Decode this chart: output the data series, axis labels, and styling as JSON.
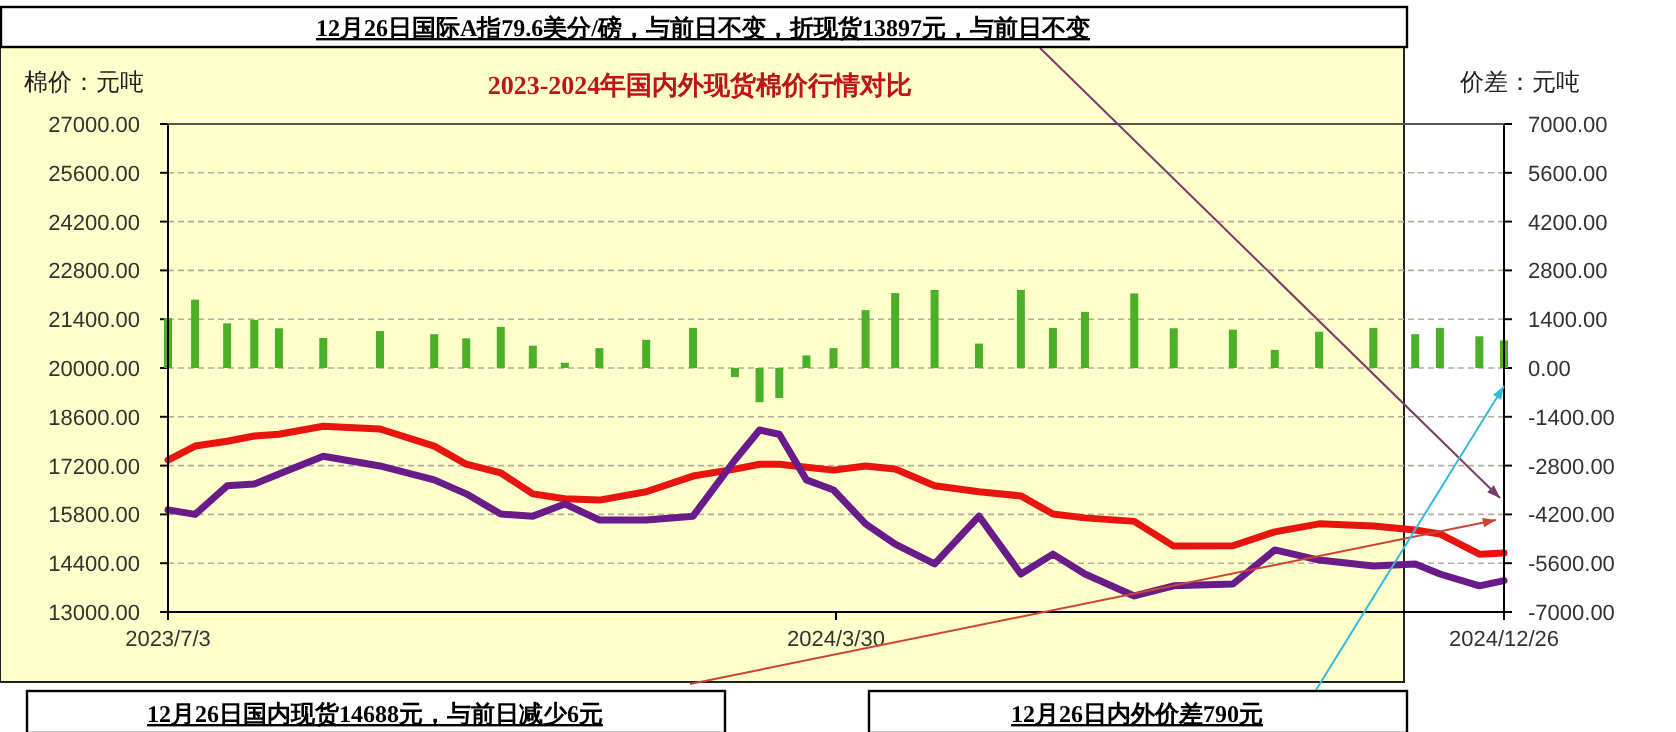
{
  "chart_data": {
    "type": "line",
    "title": "2023-2024年国内外现货棉价行情对比",
    "ylabel": "棉价：元吨",
    "y2label": "价差：元吨",
    "annotations": [
      "12月26日国际A指79.6美分/磅，与前日不变，折现货13897元，与前日不变",
      "12月26日国内现货14688元，与前日减少6元",
      "12月26日内外价差790元"
    ],
    "x": [
      "2023-07-03",
      "2023-07-14",
      "2023-07-27",
      "2023-08-07",
      "2023-08-17",
      "2023-09-04",
      "2023-09-27",
      "2023-10-19",
      "2023-11-01",
      "2023-11-15",
      "2023-11-28",
      "2023-12-11",
      "2023-12-25",
      "2024-01-13",
      "2024-02-01",
      "2024-02-18",
      "2024-02-28",
      "2024-03-07",
      "2024-03-18",
      "2024-03-29",
      "2024-04-11",
      "2024-04-23",
      "2024-05-09",
      "2024-05-27",
      "2024-06-13",
      "2024-06-26",
      "2024-07-09",
      "2024-07-29",
      "2024-08-14",
      "2024-09-07",
      "2024-09-24",
      "2024-10-12",
      "2024-11-03",
      "2024-11-20",
      "2024-11-30",
      "2024-12-16",
      "2024-12-26"
    ],
    "series": [
      {
        "type": "bar",
        "axis": "y2",
        "color": "#4caf28",
        "values": [
          1430,
          1960,
          1280,
          1380,
          1140,
          860,
          1060,
          970,
          850,
          1180,
          640,
          150,
          570,
          810,
          1150,
          -260,
          -980,
          -860,
          360,
          570,
          1660,
          2150,
          2240,
          700,
          2240,
          1150,
          1610,
          2140,
          1140,
          1100,
          520,
          1040,
          1150,
          970,
          1150,
          910,
          790
        ]
      },
      {
        "color": "#e8140e",
        "values": [
          17360,
          17760,
          17900,
          18050,
          18100,
          18330,
          18250,
          17760,
          17240,
          16990,
          16390,
          16250,
          16210,
          16450,
          16900,
          17100,
          17240,
          17240,
          17150,
          17070,
          17190,
          17100,
          16620,
          16450,
          16330,
          15810,
          15700,
          15600,
          14890,
          14900,
          15300,
          15530,
          15470,
          15350,
          15240,
          14660,
          14690
        ]
      },
      {
        "color": "#6a1b8a",
        "values": [
          15930,
          15800,
          16620,
          16670,
          16960,
          17470,
          17190,
          16790,
          16390,
          15810,
          15750,
          16100,
          15640,
          15640,
          15750,
          17360,
          18220,
          18100,
          16790,
          16500,
          15530,
          14950,
          14380,
          15750,
          14090,
          14660,
          14090,
          13460,
          13750,
          13800,
          14780,
          14490,
          14320,
          14380,
          14090,
          13750,
          13900
        ]
      }
    ],
    "xlim": [
      "2023-07-03",
      "2024-12-26"
    ],
    "xticks": [
      {
        "value": "2023-07-03",
        "label": "2023/7/3"
      },
      {
        "value": "2024-03-30",
        "label": "2024/3/30"
      },
      {
        "value": "2024-12-26",
        "label": "2024/12/26"
      }
    ],
    "ylim": [
      13000,
      27000
    ],
    "yticks": [
      {
        "value": 13000,
        "label": "13000.00"
      },
      {
        "value": 14400,
        "label": "14400.00"
      },
      {
        "value": 15800,
        "label": "15800.00"
      },
      {
        "value": 17200,
        "label": "17200.00"
      },
      {
        "value": 18600,
        "label": "18600.00"
      },
      {
        "value": 20000,
        "label": "20000.00"
      },
      {
        "value": 21400,
        "label": "21400.00"
      },
      {
        "value": 22800,
        "label": "22800.00"
      },
      {
        "value": 24200,
        "label": "24200.00"
      },
      {
        "value": 25600,
        "label": "25600.00"
      },
      {
        "value": 27000,
        "label": "27000.00"
      }
    ],
    "y2lim": [
      -7000,
      7000
    ],
    "y2ticks": [
      {
        "value": -7000,
        "label": "-7000.00"
      },
      {
        "value": -5600,
        "label": "-5600.00"
      },
      {
        "value": -4200,
        "label": "-4200.00"
      },
      {
        "value": -2800,
        "label": "-2800.00"
      },
      {
        "value": -1400,
        "label": "-1400.00"
      },
      {
        "value": 0,
        "label": "0.00"
      },
      {
        "value": 1400,
        "label": "1400.00"
      },
      {
        "value": 2800,
        "label": "2800.00"
      },
      {
        "value": 4200,
        "label": "4200.00"
      },
      {
        "value": 5600,
        "label": "5600.00"
      },
      {
        "value": 7000,
        "label": "7000.00"
      }
    ],
    "grid": "y"
  }
}
